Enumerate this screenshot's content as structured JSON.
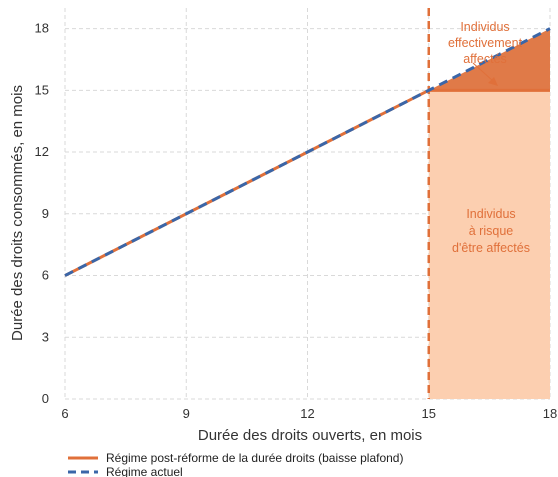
{
  "chart_data": {
    "type": "line",
    "xlabel": "Durée des droits ouverts, en mois",
    "ylabel": "Durée des droits consommés, en mois",
    "xlim": [
      6,
      18
    ],
    "ylim": [
      0,
      19
    ],
    "x_ticks": [
      6,
      9,
      12,
      15,
      18
    ],
    "y_ticks": [
      0,
      3,
      6,
      9,
      12,
      15,
      18
    ],
    "grid": true,
    "legend_position": "bottom-left",
    "series": [
      {
        "name": "Régime post-réforme de la durée droits (baisse plafond)",
        "style": "solid",
        "color": "#e0703a",
        "x": [
          6,
          15,
          18
        ],
        "y": [
          6,
          15,
          15
        ]
      },
      {
        "name": "Régime actuel",
        "style": "dashed",
        "color": "#3a66a8",
        "x": [
          6,
          18
        ],
        "y": [
          6,
          18
        ]
      }
    ],
    "reference_line": {
      "x": 15,
      "style": "dashed",
      "color": "#e0703a"
    },
    "shaded_regions": [
      {
        "label": "Individus à risque d'être affectés",
        "x": [
          15,
          18
        ],
        "y": [
          0,
          15
        ],
        "color": "#fccfb0"
      },
      {
        "label": "Individus effectivement affectés",
        "polygon": [
          [
            15,
            15
          ],
          [
            18,
            18
          ],
          [
            18,
            15
          ]
        ],
        "color": "#e07a48"
      }
    ],
    "annotations": [
      {
        "lines": [
          "Individus",
          "effectivement",
          "affectés"
        ],
        "color": "#e0703a"
      },
      {
        "lines": [
          "Individus",
          "à risque",
          "d'être affectés"
        ],
        "color": "#e0703a"
      }
    ]
  },
  "colors": {
    "orange": "#e0703a",
    "blue": "#3a66a8",
    "light_fill": "#fccfb0",
    "dark_fill": "#e07a48",
    "grid": "#d9d9d9"
  }
}
